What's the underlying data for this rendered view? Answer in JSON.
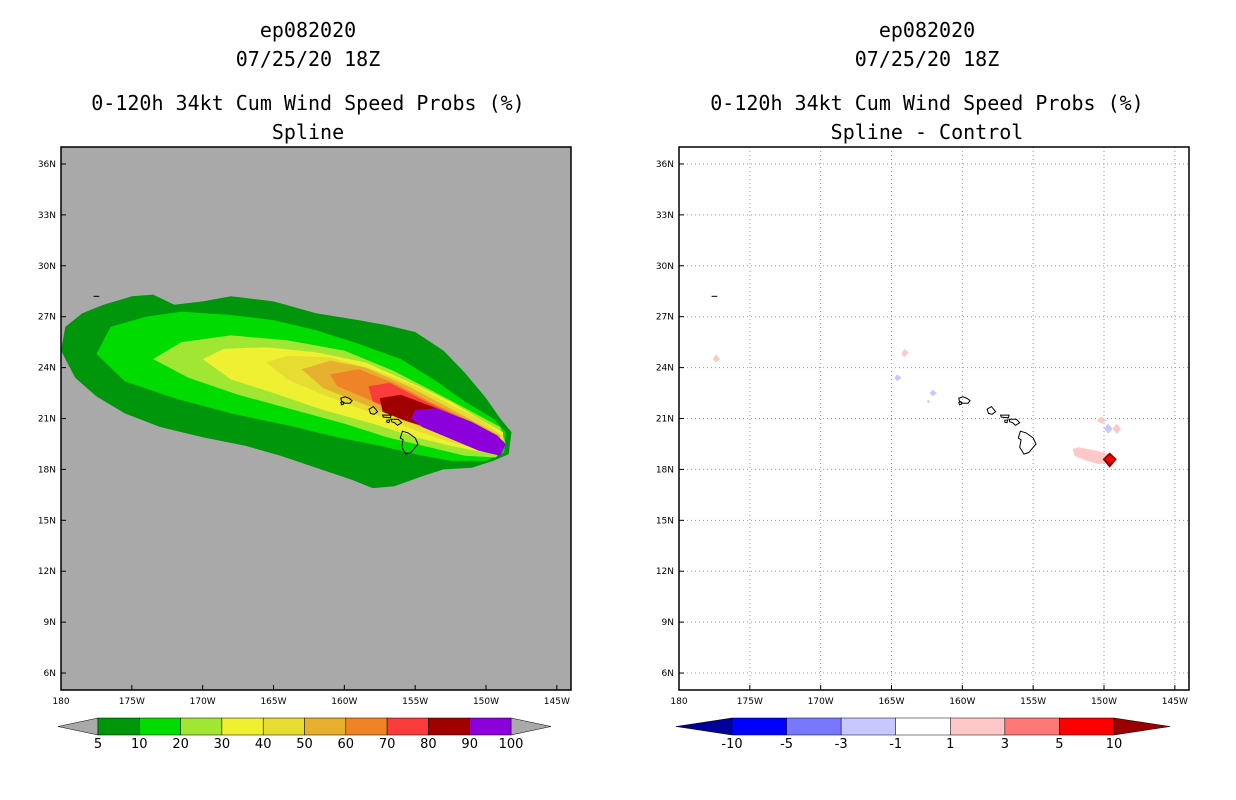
{
  "panels": [
    {
      "title_line1": "ep082020",
      "title_line2": "07/25/20 18Z",
      "title_line3": "0-120h 34kt Cum Wind Speed Probs (%)",
      "title_line4": "Spline"
    },
    {
      "title_line1": "ep082020",
      "title_line2": "07/25/20 18Z",
      "title_line3": "0-120h 34kt Cum Wind Speed Probs (%)",
      "title_line4": "Spline - Control"
    }
  ],
  "colors": {
    "missing_background": "#a9a9a9",
    "coast": "#000000"
  },
  "chart_data": [
    {
      "type": "heatmap",
      "title": "0-120h 34kt Cum Wind Speed Probs (%) Spline",
      "storm": "ep082020",
      "valid": "07/25/20 18Z",
      "lon_ticks": [
        "180",
        "175W",
        "170W",
        "165W",
        "160W",
        "155W",
        "150W",
        "145W"
      ],
      "lat_ticks": [
        "6N",
        "9N",
        "12N",
        "15N",
        "18N",
        "21N",
        "24N",
        "27N",
        "30N",
        "33N",
        "36N"
      ],
      "xlim_lon": [
        -180,
        -144
      ],
      "ylim_lat": [
        5,
        37
      ],
      "colorbar": {
        "labels": [
          "5",
          "10",
          "20",
          "30",
          "40",
          "50",
          "60",
          "70",
          "80",
          "90",
          "100"
        ],
        "colors": [
          "#00960c",
          "#00dc00",
          "#a0e632",
          "#f0f032",
          "#e6dc32",
          "#e6af2d",
          "#f08228",
          "#fa3c3c",
          "#a00000",
          "#8c00dc"
        ]
      },
      "contour_levels": [
        {
          "level": 5,
          "color": "#00960c",
          "polygon": [
            [
              -180,
              25
            ],
            [
              -179.7,
              26.4
            ],
            [
              -178.5,
              27.2
            ],
            [
              -177,
              27.7
            ],
            [
              -175,
              28.2
            ],
            [
              -173.5,
              28.3
            ],
            [
              -172,
              27.7
            ],
            [
              -170,
              27.9
            ],
            [
              -168,
              28.2
            ],
            [
              -165,
              27.9
            ],
            [
              -162,
              27.2
            ],
            [
              -159,
              26.8
            ],
            [
              -157,
              26.5
            ],
            [
              -155,
              26.1
            ],
            [
              -153,
              25
            ],
            [
              -151.5,
              23.7
            ],
            [
              -150,
              22.2
            ],
            [
              -149,
              21
            ],
            [
              -148.2,
              20.2
            ],
            [
              -148.4,
              18.9
            ],
            [
              -149.5,
              18.5
            ],
            [
              -151,
              18.1
            ],
            [
              -153,
              18
            ],
            [
              -154.5,
              17.6
            ],
            [
              -156.5,
              17
            ],
            [
              -158,
              16.9
            ],
            [
              -159.5,
              17.4
            ],
            [
              -162,
              18.1
            ],
            [
              -164.5,
              18.8
            ],
            [
              -167,
              19.4
            ],
            [
              -170,
              19.9
            ],
            [
              -173,
              20.5
            ],
            [
              -175.5,
              21.3
            ],
            [
              -177.5,
              22.3
            ],
            [
              -179,
              23.4
            ]
          ]
        },
        {
          "level": 10,
          "color": "#00dc00",
          "polygon": [
            [
              -177.5,
              24.8
            ],
            [
              -176.5,
              26.4
            ],
            [
              -174,
              27
            ],
            [
              -171.5,
              27.3
            ],
            [
              -168,
              27.1
            ],
            [
              -165,
              26.8
            ],
            [
              -162,
              26.2
            ],
            [
              -159,
              25.4
            ],
            [
              -156,
              24.5
            ],
            [
              -153.5,
              23.2
            ],
            [
              -151.5,
              22
            ],
            [
              -149.5,
              21
            ],
            [
              -148.6,
              20.2
            ],
            [
              -148.7,
              19
            ],
            [
              -150,
              18.5
            ],
            [
              -152.5,
              18.5
            ],
            [
              -155,
              18.9
            ],
            [
              -157.5,
              19.4
            ],
            [
              -160.5,
              19.9
            ],
            [
              -164,
              20.6
            ],
            [
              -168,
              21.3
            ],
            [
              -172,
              22.2
            ],
            [
              -175.5,
              23.2
            ]
          ]
        },
        {
          "level": 20,
          "color": "#a0e632",
          "polygon": [
            [
              -173.5,
              24.5
            ],
            [
              -171.5,
              25.5
            ],
            [
              -168,
              25.9
            ],
            [
              -164,
              25.6
            ],
            [
              -160,
              25
            ],
            [
              -156.5,
              23.8
            ],
            [
              -153.5,
              22.5
            ],
            [
              -151,
              21.4
            ],
            [
              -149,
              20.5
            ],
            [
              -148.6,
              19.5
            ],
            [
              -149.3,
              18.7
            ],
            [
              -151.5,
              18.8
            ],
            [
              -154,
              19.3
            ],
            [
              -157,
              19.9
            ],
            [
              -160,
              20.7
            ],
            [
              -164,
              21.6
            ],
            [
              -167.5,
              22.4
            ],
            [
              -171,
              23.4
            ]
          ]
        },
        {
          "level": 30,
          "color": "#f0f032",
          "polygon": [
            [
              -170,
              24.5
            ],
            [
              -168.5,
              25.1
            ],
            [
              -165.5,
              25.2
            ],
            [
              -162,
              24.9
            ],
            [
              -158.5,
              24.3
            ],
            [
              -155,
              23
            ],
            [
              -152.5,
              22
            ],
            [
              -150.5,
              21
            ],
            [
              -148.8,
              20.2
            ],
            [
              -148.8,
              19.2
            ],
            [
              -150.2,
              19
            ],
            [
              -152.5,
              19.4
            ],
            [
              -155,
              19.9
            ],
            [
              -158,
              20.7
            ],
            [
              -161.5,
              21.5
            ],
            [
              -165,
              22.5
            ],
            [
              -168,
              23.3
            ]
          ]
        },
        {
          "level": 40,
          "color": "#e6dc32",
          "polygon": [
            [
              -165.5,
              24.3
            ],
            [
              -164,
              24.7
            ],
            [
              -161,
              24.6
            ],
            [
              -158,
              23.9
            ],
            [
              -155,
              22.9
            ],
            [
              -152.5,
              21.8
            ],
            [
              -150.5,
              21
            ],
            [
              -148.9,
              20
            ],
            [
              -149,
              19.3
            ],
            [
              -150.5,
              19.2
            ],
            [
              -152.5,
              19.6
            ],
            [
              -155,
              20.3
            ],
            [
              -158,
              21.3
            ],
            [
              -161.5,
              22.4
            ],
            [
              -164,
              23.3
            ]
          ]
        },
        {
          "level": 50,
          "color": "#e6af2d",
          "polygon": [
            [
              -163,
              23.9
            ],
            [
              -161,
              24.4
            ],
            [
              -158.5,
              24
            ],
            [
              -155.5,
              22.9
            ],
            [
              -153,
              21.8
            ],
            [
              -150.8,
              20.8
            ],
            [
              -149,
              20
            ],
            [
              -149.1,
              19.3
            ],
            [
              -150.7,
              19.4
            ],
            [
              -153,
              20
            ],
            [
              -155.5,
              20.8
            ],
            [
              -158.5,
              21.8
            ],
            [
              -161.5,
              22.8
            ]
          ]
        },
        {
          "level": 60,
          "color": "#f08228",
          "polygon": [
            [
              -161,
              23.6
            ],
            [
              -159,
              23.9
            ],
            [
              -156.5,
              23.1
            ],
            [
              -154,
              22
            ],
            [
              -151.5,
              21
            ],
            [
              -149.2,
              20
            ],
            [
              -149.3,
              19.4
            ],
            [
              -151,
              19.6
            ],
            [
              -153.5,
              20.4
            ],
            [
              -156,
              21.3
            ],
            [
              -158.5,
              22.2
            ],
            [
              -160.5,
              22.9
            ]
          ]
        },
        {
          "level": 70,
          "color": "#fa3c3c",
          "polygon": [
            [
              -158.3,
              22.9
            ],
            [
              -156.8,
              23.1
            ],
            [
              -154.5,
              22.1
            ],
            [
              -152,
              21.1
            ],
            [
              -149.7,
              20.1
            ],
            [
              -149.4,
              19.5
            ],
            [
              -151,
              19.7
            ],
            [
              -153.5,
              20.5
            ],
            [
              -156,
              21.3
            ],
            [
              -158,
              22
            ]
          ]
        },
        {
          "level": 80,
          "color": "#a00000",
          "polygon": [
            [
              -157.5,
              22.2
            ],
            [
              -156,
              22.4
            ],
            [
              -153.5,
              21.6
            ],
            [
              -151,
              20.6
            ],
            [
              -149.5,
              19.9
            ],
            [
              -149.5,
              19.5
            ],
            [
              -151,
              19.6
            ],
            [
              -153.5,
              20.3
            ],
            [
              -155.8,
              20.9
            ],
            [
              -157.3,
              21.4
            ]
          ]
        },
        {
          "level": 90,
          "color": "#8c00dc",
          "polygon": [
            [
              -155,
              21.5
            ],
            [
              -153.5,
              21.6
            ],
            [
              -151,
              20.8
            ],
            [
              -149.2,
              20
            ],
            [
              -148.6,
              19.5
            ],
            [
              -149,
              18.8
            ],
            [
              -150.5,
              19.1
            ],
            [
              -152.5,
              19.8
            ],
            [
              -154.5,
              20.5
            ],
            [
              -155.3,
              21
            ]
          ]
        }
      ]
    },
    {
      "type": "heatmap",
      "title": "0-120h 34kt Cum Wind Speed Probs (%) Spline - Control",
      "storm": "ep082020",
      "valid": "07/25/20 18Z",
      "lon_ticks": [
        "180",
        "175W",
        "170W",
        "165W",
        "160W",
        "155W",
        "150W",
        "145W"
      ],
      "lat_ticks": [
        "6N",
        "9N",
        "12N",
        "15N",
        "18N",
        "21N",
        "24N",
        "27N",
        "30N",
        "33N",
        "36N"
      ],
      "xlim_lon": [
        -180,
        -144
      ],
      "ylim_lat": [
        5,
        37
      ],
      "grid": true,
      "colorbar": {
        "labels": [
          "-10",
          "-5",
          "-3",
          "-1",
          "1",
          "3",
          "5",
          "10"
        ],
        "colors": [
          "#00009b",
          "#0000ff",
          "#7878ff",
          "#c8c8ff",
          "#ffffff",
          "#ffc8c8",
          "#ff7878",
          "#ff0000",
          "#9b0000"
        ]
      },
      "features": [
        {
          "value": 2,
          "color": "#ffc8c8",
          "polygon": [
            [
              -177.4,
              24.8
            ],
            [
              -177.1,
              24.5
            ],
            [
              -177.4,
              24.3
            ],
            [
              -177.6,
              24.5
            ]
          ]
        },
        {
          "value": 2,
          "color": "#ffc8c8",
          "polygon": [
            [
              -164.1,
              25.1
            ],
            [
              -163.8,
              24.9
            ],
            [
              -164.1,
              24.6
            ],
            [
              -164.3,
              24.8
            ]
          ]
        },
        {
          "value": -2,
          "color": "#c8c8ff",
          "polygon": [
            [
              -164.6,
              23.6
            ],
            [
              -164.3,
              23.4
            ],
            [
              -164.6,
              23.2
            ],
            [
              -164.8,
              23.4
            ]
          ]
        },
        {
          "value": -2,
          "color": "#c8c8ff",
          "polygon": [
            [
              -162.1,
              22.7
            ],
            [
              -161.8,
              22.5
            ],
            [
              -162.1,
              22.3
            ],
            [
              -162.3,
              22.5
            ]
          ]
        },
        {
          "value": -2,
          "color": "#c8c8ff",
          "polygon": [
            [
              -162.4,
              22.1
            ],
            [
              -162.3,
              22
            ],
            [
              -162.4,
              21.9
            ],
            [
              -162.5,
              22
            ]
          ]
        },
        {
          "value": 2,
          "color": "#ffc8c8",
          "polygon": [
            [
              -150.2,
              21.1
            ],
            [
              -149.8,
              20.9
            ],
            [
              -150.2,
              20.7
            ],
            [
              -150.5,
              20.9
            ]
          ]
        },
        {
          "value": 2,
          "color": "#ffc8c8",
          "polygon": [
            [
              -149.1,
              20.7
            ],
            [
              -148.8,
              20.4
            ],
            [
              -149.1,
              20.1
            ],
            [
              -149.4,
              20.4
            ]
          ]
        },
        {
          "value": -2,
          "color": "#c8c8ff",
          "polygon": [
            [
              -149.7,
              20.7
            ],
            [
              -149.4,
              20.4
            ],
            [
              -149.7,
              20.1
            ],
            [
              -150,
              20.4
            ]
          ]
        },
        {
          "value": 2,
          "color": "#ffc8c8",
          "polygon": [
            [
              -152.2,
              19.2
            ],
            [
              -151.8,
              19.3
            ],
            [
              -150.5,
              19.1
            ],
            [
              -149.6,
              18.9
            ],
            [
              -149.5,
              18.5
            ],
            [
              -150.3,
              18.3
            ],
            [
              -151.2,
              18.5
            ],
            [
              -152.1,
              18.8
            ]
          ]
        },
        {
          "value": 12,
          "color": "#9b0000",
          "polygon": [
            [
              -149.6,
              19
            ],
            [
              -149.1,
              18.6
            ],
            [
              -149.6,
              18.1
            ],
            [
              -150.1,
              18.6
            ]
          ]
        },
        {
          "value": 7,
          "color": "#ff0000",
          "polygon": [
            [
              -149.6,
              18.85
            ],
            [
              -149.3,
              18.6
            ],
            [
              -149.6,
              18.35
            ],
            [
              -149.9,
              18.6
            ]
          ]
        }
      ]
    }
  ]
}
